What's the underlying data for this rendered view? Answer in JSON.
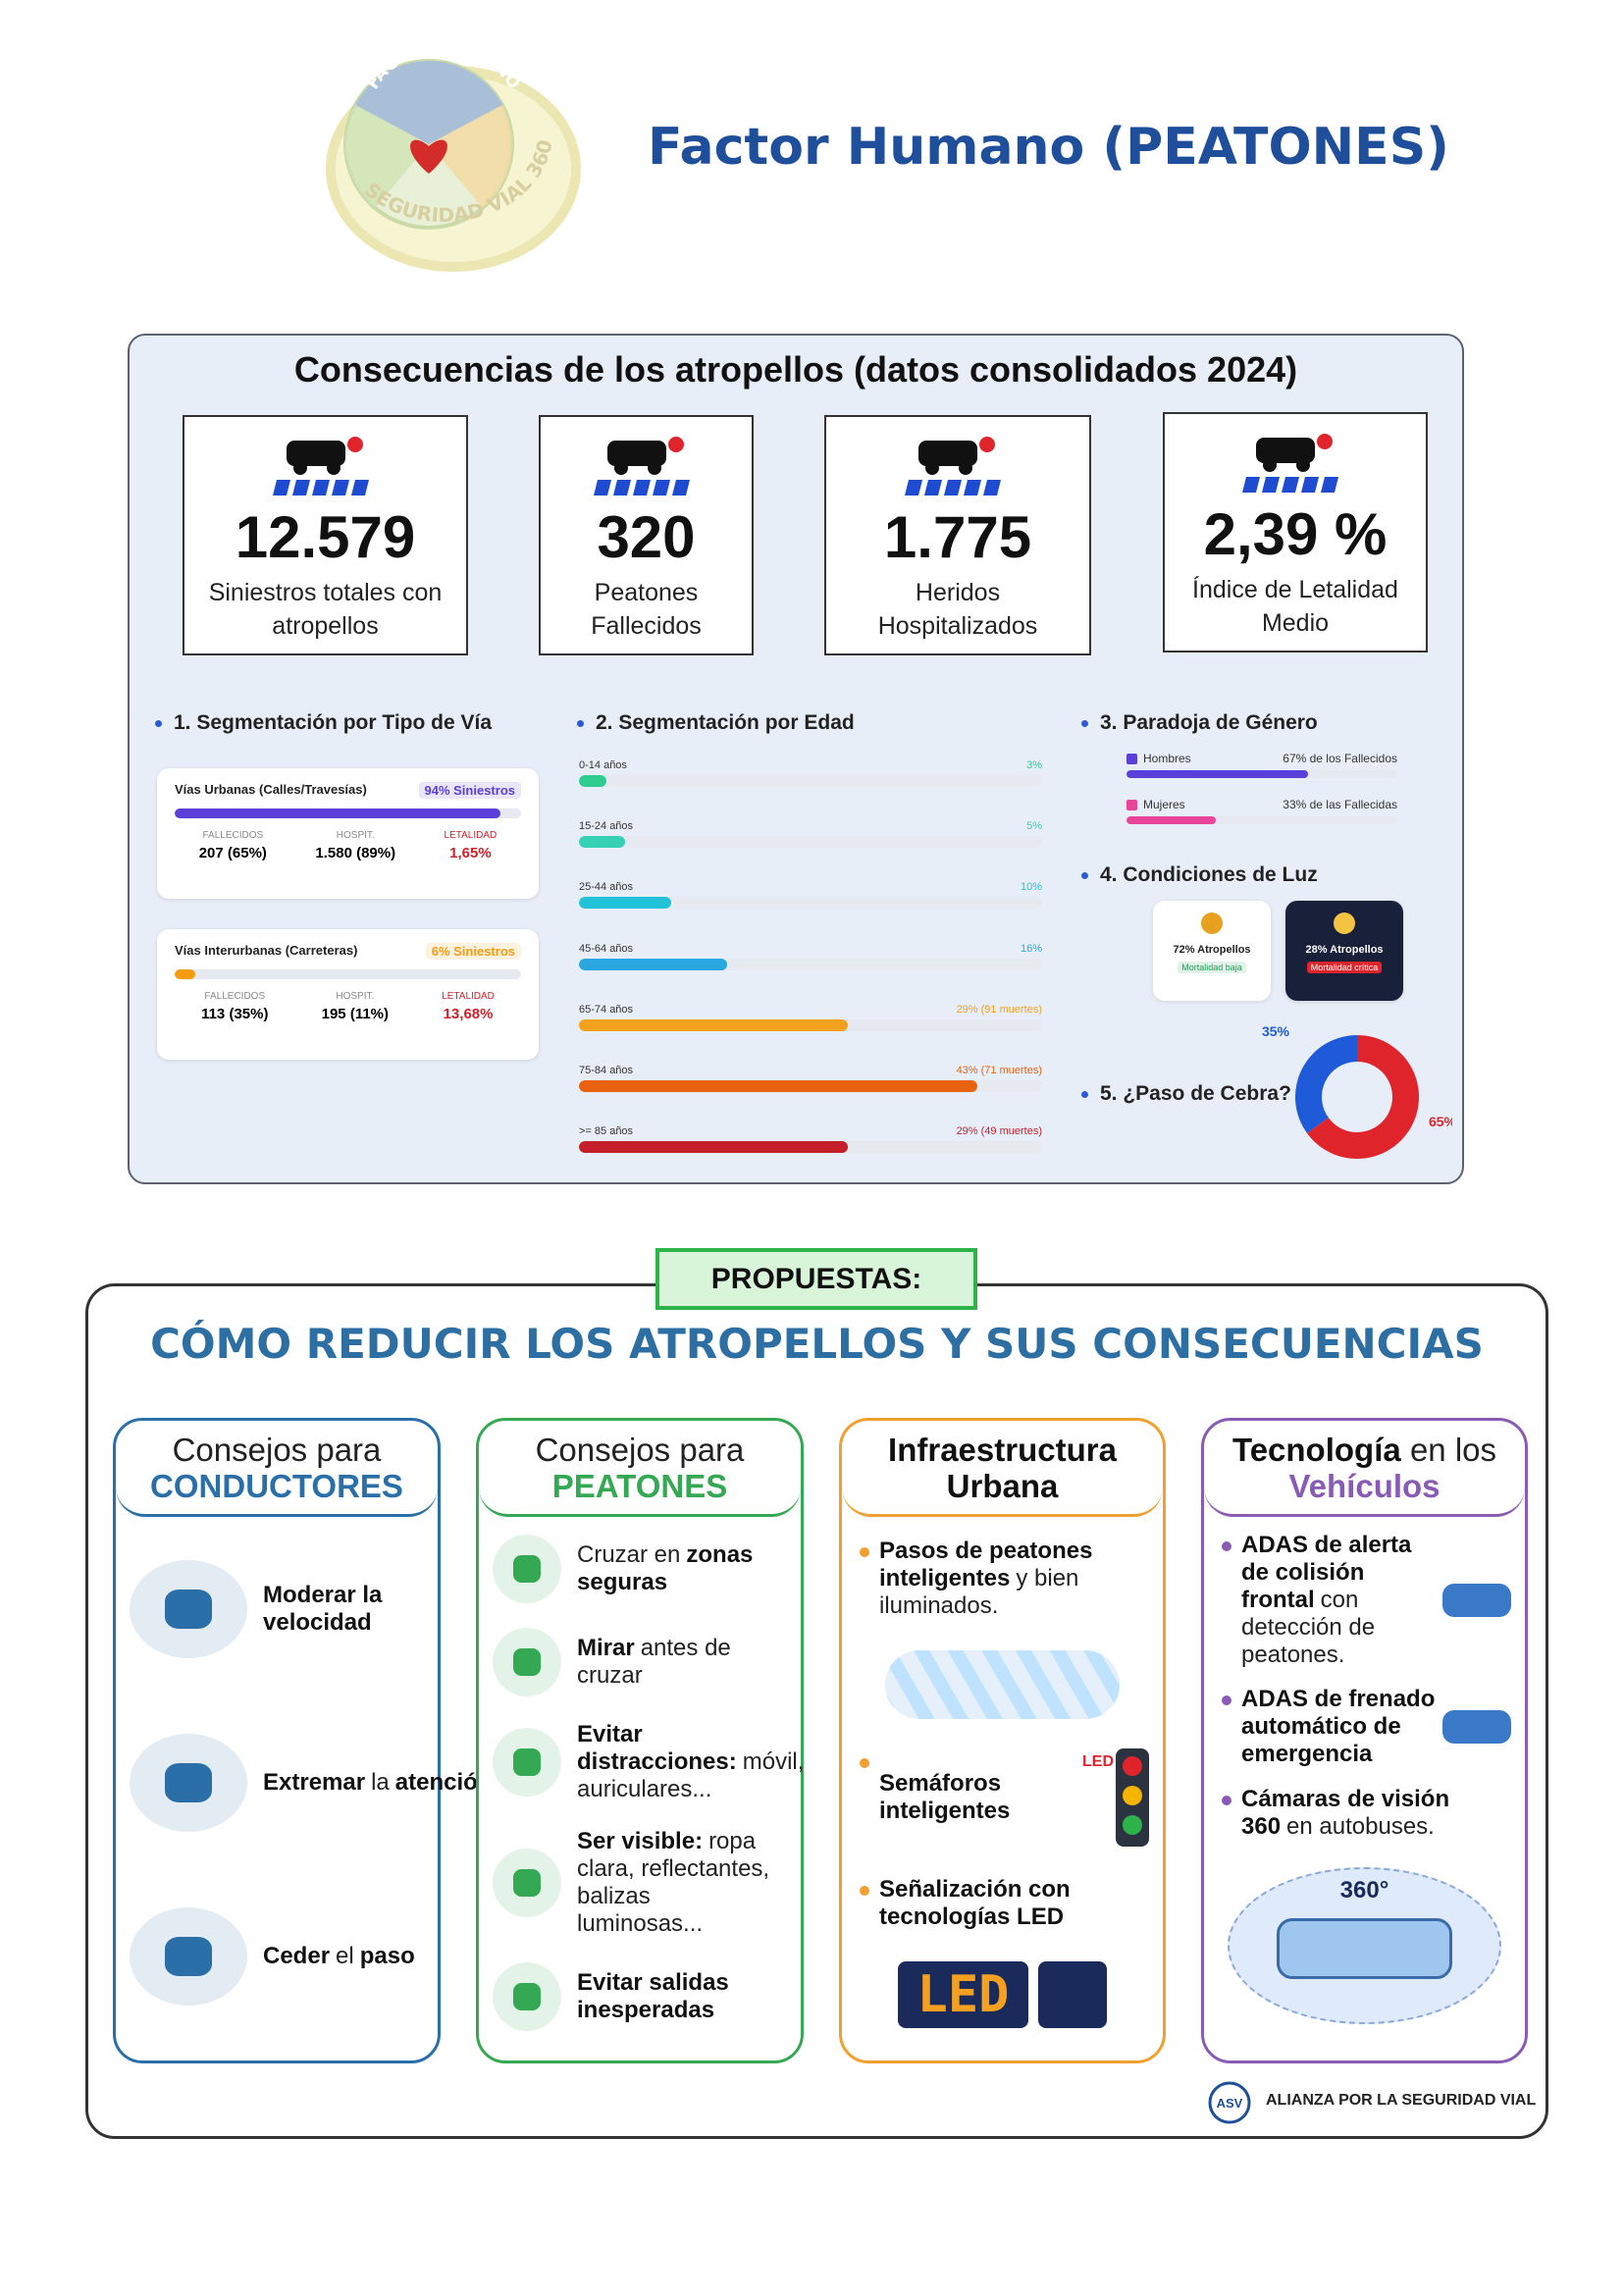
{
  "header": {
    "logo_top": "FACTOR HUMANO",
    "logo_bottom": "SEGURIDAD VIAL 360°",
    "title": "Factor Humano (PEATONES)"
  },
  "consequences": {
    "title": "Consecuencias de los atropellos (datos consolidados 2024)",
    "stats": [
      {
        "value": "12.579",
        "label": "Siniestros totales con atropellos"
      },
      {
        "value": "320",
        "label": "Peatones Fallecidos"
      },
      {
        "value": "1.775",
        "label": "Heridos Hospitalizados"
      },
      {
        "value": "2,39 %",
        "label": "Índice de Letalidad Medio"
      }
    ],
    "road_type": {
      "title": "1. Segmentación por Tipo de Vía",
      "xlim": [
        0,
        100
      ],
      "items": [
        {
          "name": "Vías Urbanas (Calles/Travesías)",
          "value": 94,
          "value_label": "94% Siniestros",
          "color": "#5a3fd8",
          "metrics": [
            {
              "label": "FALLECIDOS",
              "value": "207 (65%)"
            },
            {
              "label": "HOSPIT.",
              "value": "1.580 (89%)"
            },
            {
              "label": "LETALIDAD",
              "value": "1,65%"
            }
          ]
        },
        {
          "name": "Vías Interurbanas (Carreteras)",
          "value": 6,
          "value_label": "6% Siniestros",
          "color": "#f39c12",
          "metrics": [
            {
              "label": "FALLECIDOS",
              "value": "113 (35%)"
            },
            {
              "label": "HOSPIT.",
              "value": "195 (11%)"
            },
            {
              "label": "LETALIDAD",
              "value": "13,68%"
            }
          ]
        }
      ]
    },
    "age": {
      "title": "2. Segmentación por Edad",
      "xlim": [
        0,
        50
      ],
      "categories": [
        "0-14 años",
        "15-24 años",
        "25-44 años",
        "45-64 años",
        "65-74 años",
        "75-84 años",
        ">= 85 años"
      ],
      "values": [
        3,
        5,
        10,
        16,
        29,
        43,
        29
      ],
      "value_labels": [
        "3%",
        "5%",
        "10%",
        "16%",
        "29% (91 muertes)",
        "43% (71 muertes)",
        "29% (49 muertes)"
      ],
      "colors": [
        "#2ecc8f",
        "#36d1b4",
        "#22c3d8",
        "#2aa6e0",
        "#f2a11c",
        "#e8620f",
        "#c41f2a"
      ]
    },
    "gender": {
      "title": "3. Paradoja de Género",
      "xlim": [
        0,
        100
      ],
      "items": [
        {
          "name": "Hombres",
          "value": 67,
          "value_label": "67% de los Fallecidos",
          "color": "#5a3fd8"
        },
        {
          "name": "Mujeres",
          "value": 33,
          "value_label": "33% de las Fallecidas",
          "color": "#e8459a"
        }
      ]
    },
    "light": {
      "title": "4. Condiciones de Luz",
      "day": {
        "label": "72% Atropellos",
        "note": "Mortalidad baja"
      },
      "night": {
        "label": "28% Atropellos",
        "note": "Mortalidad crítica"
      }
    },
    "crossing": {
      "title": "5. ¿Paso de Cebra?",
      "values": [
        35,
        65
      ],
      "value_labels": [
        "35%",
        "65%"
      ],
      "colors": [
        "#1f5bd8",
        "#e0242c"
      ]
    }
  },
  "proposals": {
    "badge": "PROPUESTAS:",
    "title": "CÓMO REDUCIR LOS ATROPELLOS Y SUS CONSECUENCIAS",
    "columns": [
      {
        "color": "#2a6fa8",
        "heading": [
          {
            "t": "Consejos para"
          },
          {
            "t": "CONDUCTORES",
            "bold": true
          }
        ],
        "items": [
          {
            "parts": [
              {
                "t": "Moderar la velocidad",
                "bold": true
              }
            ]
          },
          {
            "parts": [
              {
                "t": "Extremar",
                "bold": true
              },
              {
                "t": "la"
              },
              {
                "t": "atención",
                "bold": true
              }
            ]
          },
          {
            "parts": [
              {
                "t": "Ceder",
                "bold": true
              },
              {
                "t": "el"
              },
              {
                "t": "paso",
                "bold": true
              }
            ]
          }
        ]
      },
      {
        "color": "#35a853",
        "heading": [
          {
            "t": "Consejos para"
          },
          {
            "t": "PEATONES",
            "bold": true
          }
        ],
        "items": [
          {
            "parts": [
              {
                "t": "Cruzar en"
              },
              {
                "t": "zonas seguras",
                "bold": true
              }
            ]
          },
          {
            "parts": [
              {
                "t": "Mirar",
                "bold": true
              },
              {
                "t": "antes de cruzar"
              }
            ]
          },
          {
            "parts": [
              {
                "t": "Evitar distracciones:",
                "bold": true
              },
              {
                "t": "móvil, auriculares..."
              }
            ]
          },
          {
            "parts": [
              {
                "t": "Ser visible:",
                "bold": true
              },
              {
                "t": "ropa clara, reflectantes, balizas luminosas..."
              }
            ]
          },
          {
            "parts": [
              {
                "t": "Evitar salidas inesperadas",
                "bold": true
              }
            ]
          }
        ]
      },
      {
        "color": "#f0a030",
        "heading": [
          {
            "t": "Infraestructura Urbana",
            "bold": true
          }
        ],
        "items": [
          {
            "parts": [
              {
                "t": "Pasos de peatones inteligentes",
                "bold": true
              },
              {
                "t": "y bien iluminados."
              }
            ]
          },
          {
            "parts": [
              {
                "t": "Semáforos inteligentes",
                "bold": true
              }
            ],
            "tag": "LED"
          },
          {
            "parts": [
              {
                "t": "Señalización con tecnologías LED",
                "bold": true
              }
            ],
            "sign": "LED"
          }
        ]
      },
      {
        "color": "#8a5bb5",
        "heading": [
          {
            "t": "Tecnología",
            "bold": true
          },
          {
            "t": "en los"
          },
          {
            "t": "Vehículos",
            "bold": true
          }
        ],
        "items": [
          {
            "parts": [
              {
                "t": "ADAS de alerta de colisión frontal",
                "bold": true
              },
              {
                "t": "con detección de peatones."
              }
            ]
          },
          {
            "parts": [
              {
                "t": "ADAS de frenado automático de emergencia",
                "bold": true
              }
            ]
          },
          {
            "parts": [
              {
                "t": "Cámaras de visión 360",
                "bold": true
              },
              {
                "t": "en autobuses."
              }
            ],
            "diagram": "360°"
          }
        ]
      }
    ],
    "footer": {
      "logo": "ASV",
      "text": "ALIANZA POR LA SEGURIDAD VIAL"
    }
  }
}
